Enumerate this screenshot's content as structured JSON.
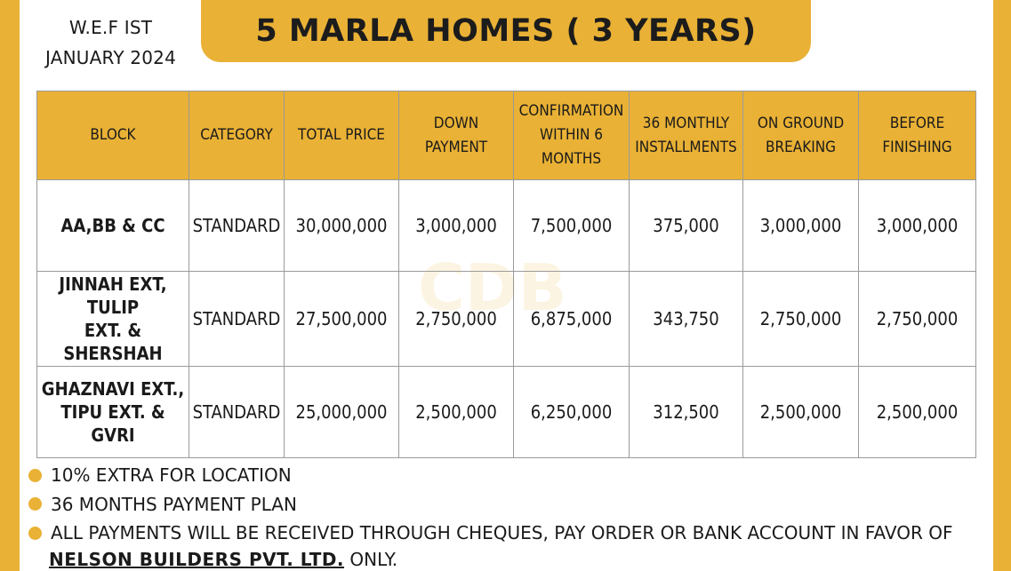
{
  "header": {
    "wef_line1": "W.E.F IST",
    "wef_line2": "JANUARY 2024",
    "title": "5 MARLA HOMES ( 3 YEARS)"
  },
  "watermark": "CDB",
  "table": {
    "headers": [
      [
        "BLOCK"
      ],
      [
        "CATEGORY"
      ],
      [
        "TOTAL PRICE"
      ],
      [
        "DOWN",
        "PAYMENT"
      ],
      [
        "CONFIRMATION",
        "WITHIN 6",
        "MONTHS"
      ],
      [
        "36 MONTHLY",
        "INSTALLMENTS"
      ],
      [
        "ON GROUND",
        "BREAKING"
      ],
      [
        "BEFORE",
        "FINISHING"
      ]
    ],
    "rows": [
      {
        "block": [
          "AA,BB & CC"
        ],
        "category": "STANDARD",
        "total_price": "30,000,000",
        "down_payment": "3,000,000",
        "confirmation": "7,500,000",
        "installments": "375,000",
        "ground_breaking": "3,000,000",
        "before_finishing": "3,000,000"
      },
      {
        "block": [
          "JINNAH EXT, TULIP",
          "EXT. & SHERSHAH"
        ],
        "category": "STANDARD",
        "total_price": "27,500,000",
        "down_payment": "2,750,000",
        "confirmation": "6,875,000",
        "installments": "343,750",
        "ground_breaking": "2,750,000",
        "before_finishing": "2,750,000"
      },
      {
        "block": [
          "GHAZNAVI EXT.,",
          "TIPU EXT. & GVRI"
        ],
        "category": "STANDARD",
        "total_price": "25,000,000",
        "down_payment": "2,500,000",
        "confirmation": "6,250,000",
        "installments": "312,500",
        "ground_breaking": "2,500,000",
        "before_finishing": "2,500,000"
      }
    ]
  },
  "notes": [
    "10% EXTRA FOR LOCATION",
    "36 MONTHS PAYMENT PLAN",
    "ALL PAYMENTS WILL BE RECEIVED THROUGH CHEQUES, PAY ORDER OR BANK ACCOUNT IN FAVOR OF"
  ],
  "footer": {
    "company": "NELSON BUILDERS PVT. LTD.",
    "suffix": "ONLY."
  },
  "colors": {
    "accent": "#e9b135",
    "background": "#ffffff",
    "text": "#1a1a1a",
    "border": "#9a9a9a"
  }
}
